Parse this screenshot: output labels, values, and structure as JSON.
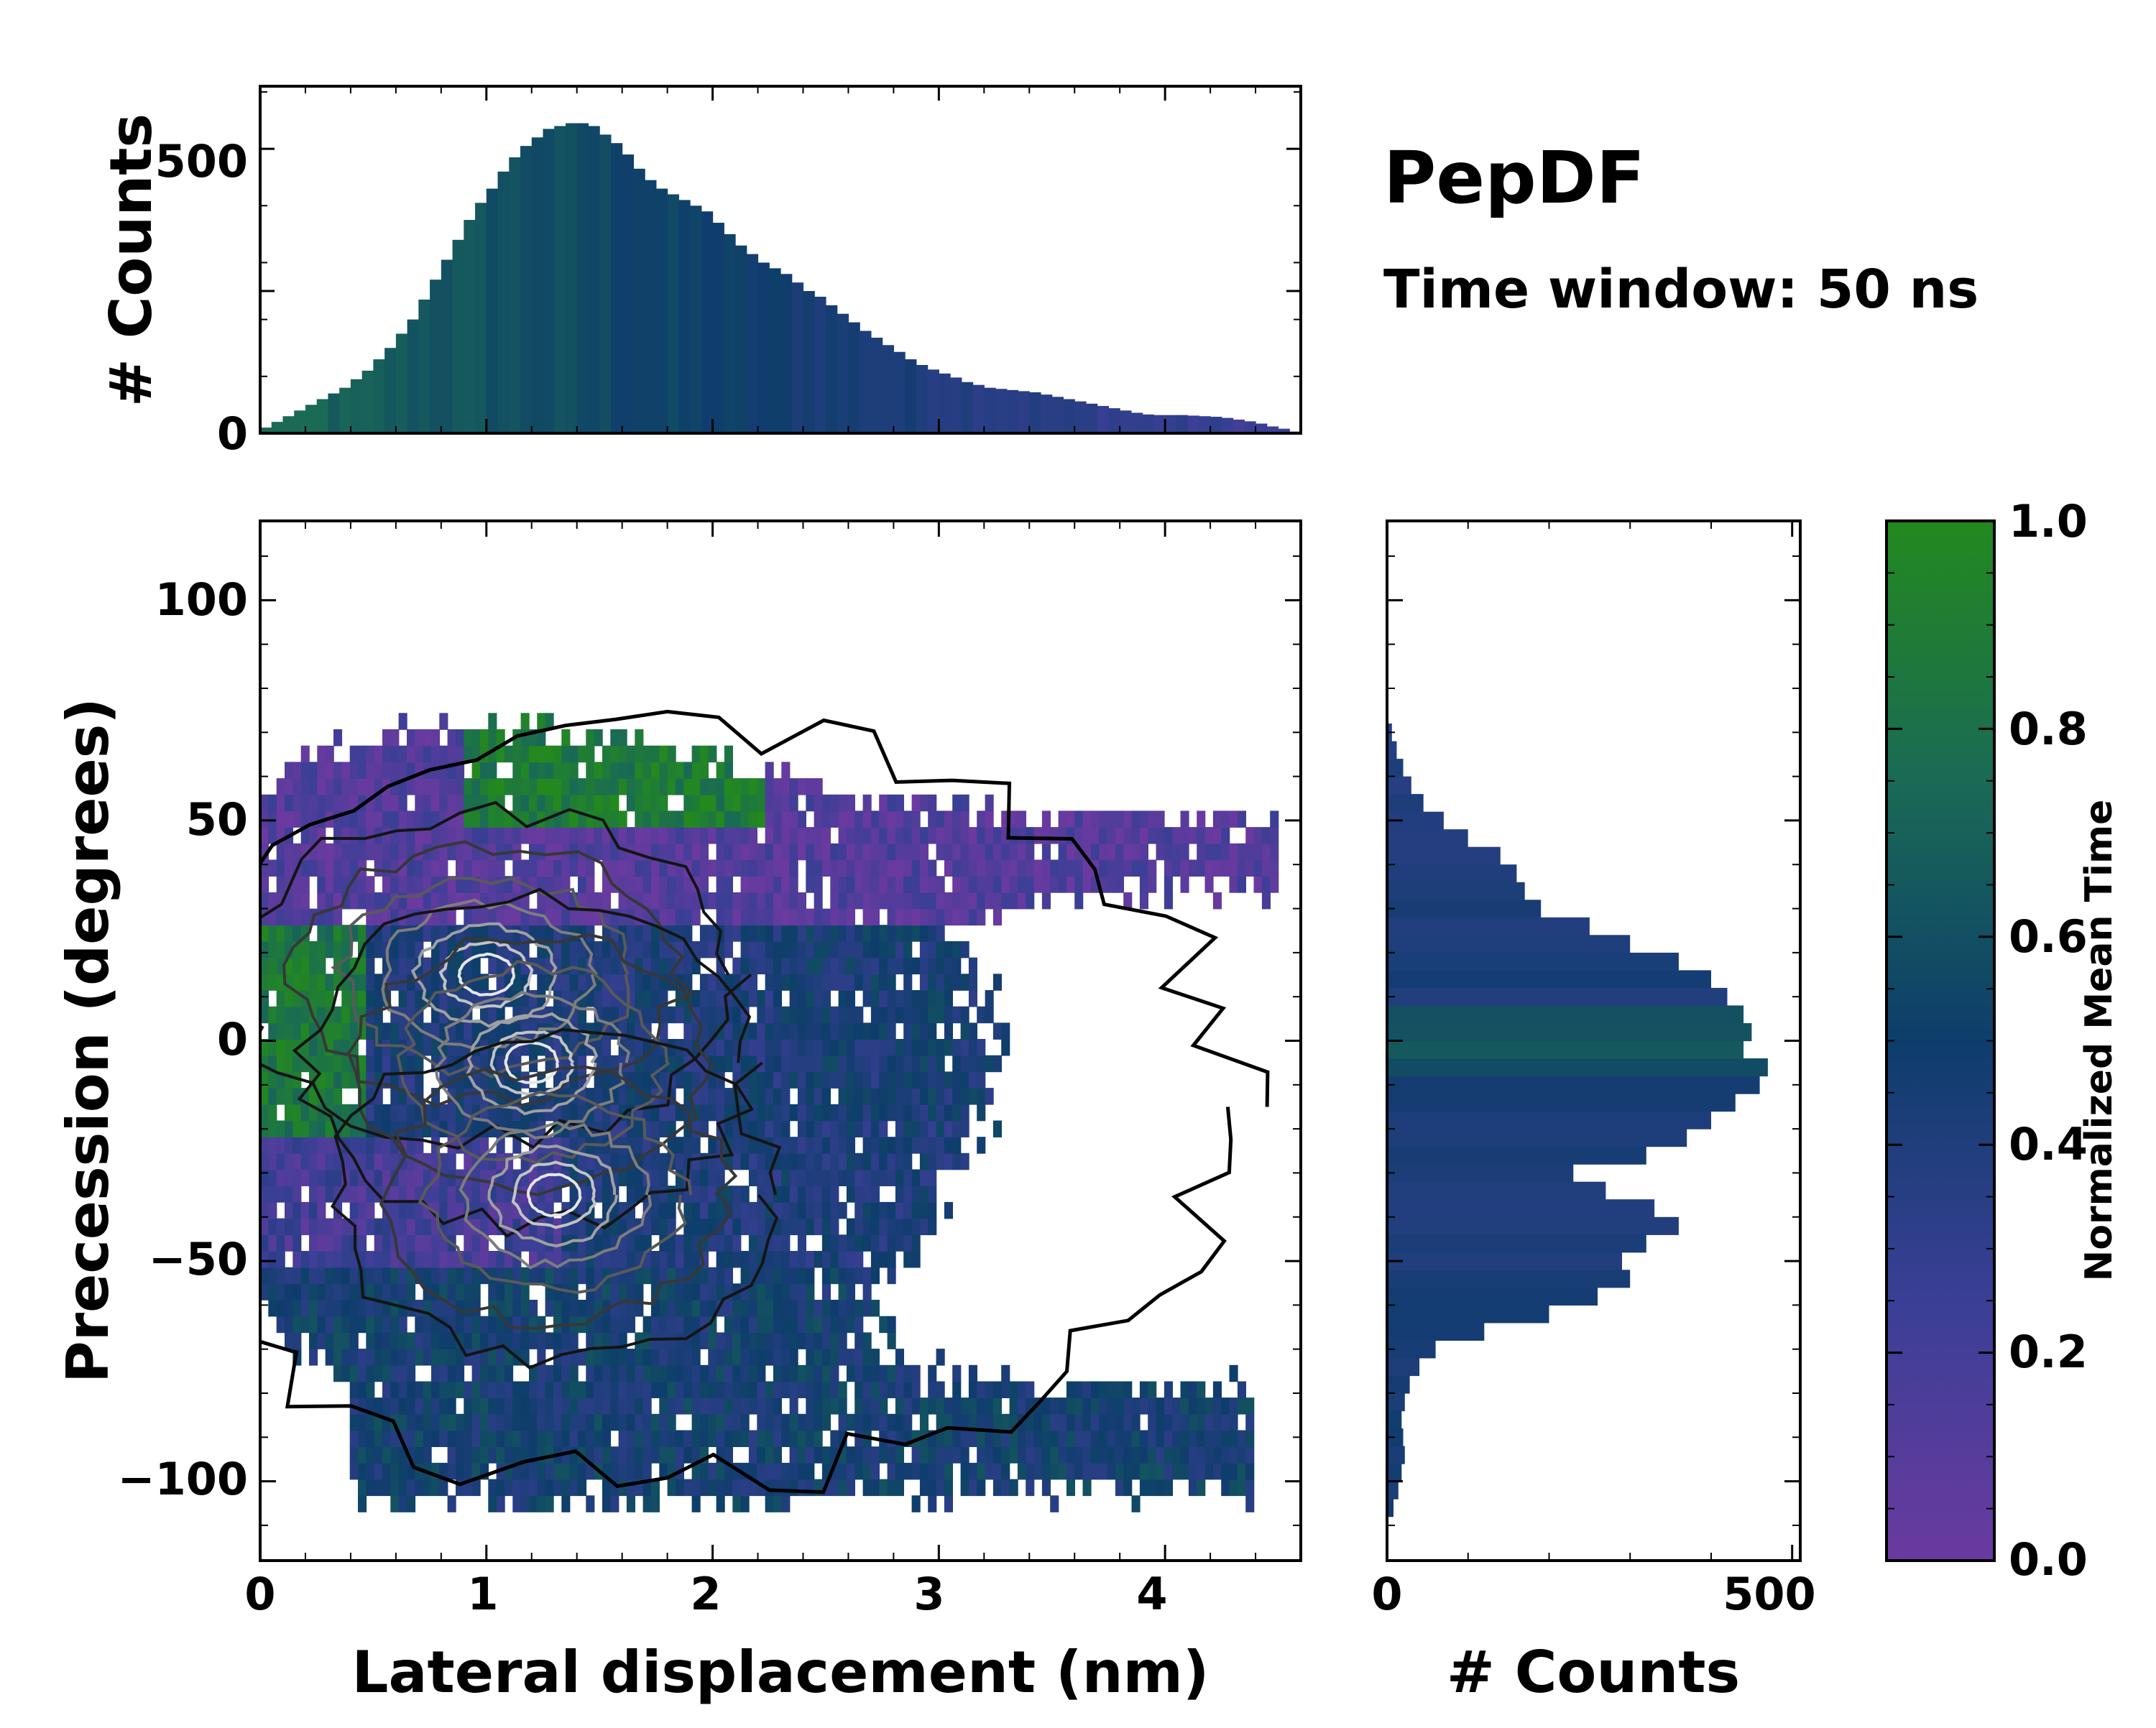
{
  "figure": {
    "title": "PepDF",
    "subtitle": "Time window: 50 ns"
  },
  "colors": {
    "low": "#6a3aa0",
    "mid": "#0e3d6b",
    "high": "#23891f",
    "contour_dark": "#111111",
    "contour_light": "#e6e6e6"
  },
  "chart_data": [
    {
      "id": "top-histogram",
      "type": "bar",
      "title": "",
      "xlabel": "",
      "ylabel": "# Counts",
      "xlim": [
        0,
        4.6
      ],
      "ylim": [
        0,
        610
      ],
      "yticks": [
        "0",
        "500"
      ],
      "bin_edges_range": [
        0,
        4.6
      ],
      "values": [
        10,
        20,
        30,
        40,
        50,
        60,
        70,
        80,
        95,
        110,
        130,
        150,
        175,
        200,
        235,
        270,
        305,
        340,
        375,
        405,
        430,
        460,
        485,
        505,
        520,
        535,
        540,
        545,
        545,
        540,
        525,
        510,
        490,
        465,
        445,
        430,
        420,
        410,
        400,
        390,
        370,
        350,
        330,
        315,
        300,
        290,
        280,
        265,
        250,
        240,
        225,
        210,
        195,
        180,
        168,
        155,
        143,
        130,
        120,
        112,
        105,
        98,
        90,
        85,
        80,
        78,
        76,
        74,
        72,
        68,
        64,
        60,
        56,
        52,
        48,
        44,
        40,
        36,
        33,
        32,
        32,
        32,
        31,
        30,
        29,
        27,
        24,
        21,
        17,
        12,
        8,
        3
      ]
    },
    {
      "id": "joint-heatmap",
      "type": "heatmap",
      "title": "",
      "xlabel": "Lateral displacement (nm)",
      "ylabel": "Precession (degrees)",
      "xlim": [
        0,
        4.6
      ],
      "ylim": [
        -118,
        118
      ],
      "xticks": [
        "0",
        "1",
        "2",
        "3",
        "4"
      ],
      "yticks": [
        "−100",
        "−50",
        "0",
        "50",
        "100"
      ],
      "density_modes": [
        {
          "x": 1.0,
          "y": 15,
          "weight": 1.0
        },
        {
          "x": 1.2,
          "y": -5,
          "weight": 1.0
        },
        {
          "x": 1.3,
          "y": -35,
          "weight": 0.85
        },
        {
          "x": 2.0,
          "y": 0,
          "weight": 0.45
        }
      ],
      "contour_levels": 7
    },
    {
      "id": "right-histogram",
      "type": "bar",
      "orientation": "horizontal",
      "title": "",
      "xlabel": "# Counts",
      "ylabel": "",
      "xlim": [
        0,
        510
      ],
      "ylim": [
        -118,
        118
      ],
      "xticks": [
        "0",
        "500"
      ],
      "y_bin_centers": [
        -106,
        -102,
        -98,
        -94,
        -90,
        -86,
        -82,
        -78,
        -74,
        -70,
        -66,
        -62,
        -58,
        -54,
        -50,
        -46,
        -42,
        -38,
        -34,
        -30,
        -26,
        -22,
        -18,
        -14,
        -10,
        -6,
        -2,
        2,
        6,
        10,
        14,
        18,
        22,
        26,
        30,
        34,
        38,
        42,
        46,
        50,
        54,
        58,
        62,
        66,
        70
      ],
      "values": [
        8,
        14,
        18,
        22,
        20,
        18,
        22,
        28,
        40,
        60,
        120,
        200,
        260,
        300,
        290,
        320,
        360,
        330,
        270,
        230,
        320,
        370,
        400,
        430,
        460,
        470,
        440,
        450,
        440,
        420,
        400,
        360,
        300,
        250,
        190,
        170,
        160,
        140,
        100,
        70,
        45,
        30,
        20,
        12,
        6
      ]
    },
    {
      "id": "colorbar",
      "type": "colorbar",
      "label": "Normalized Mean Time",
      "range": [
        0.0,
        1.0
      ],
      "ticks": [
        "0.0",
        "0.2",
        "0.4",
        "0.6",
        "0.8",
        "1.0"
      ]
    }
  ]
}
